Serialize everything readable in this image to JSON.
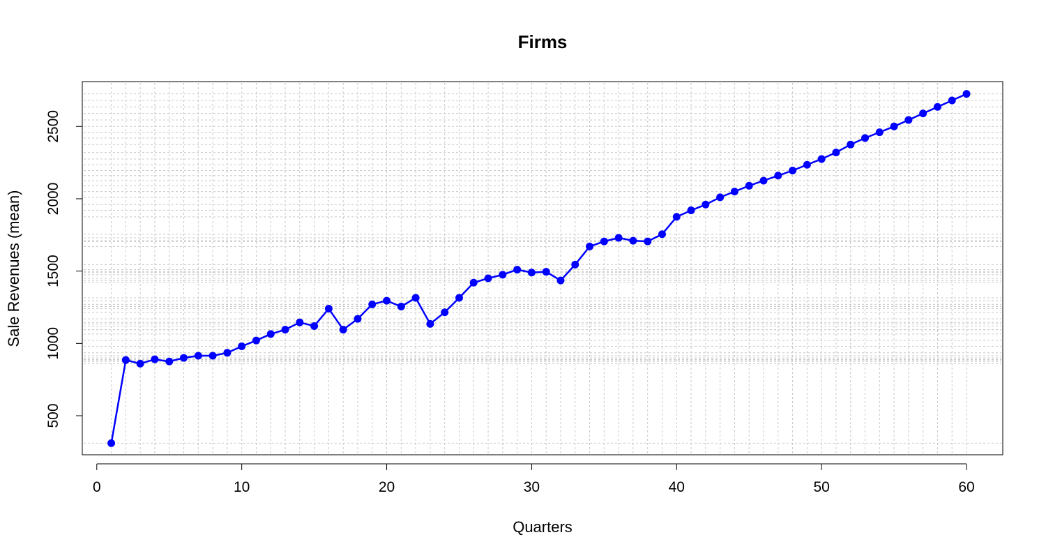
{
  "chart_data": {
    "type": "line",
    "title": "Firms",
    "xlabel": "Quarters",
    "ylabel": "Sale Revenues (mean)",
    "xlim": [
      -1,
      62.5
    ],
    "ylim": [
      230,
      2810
    ],
    "x_ticks": [
      0,
      10,
      20,
      30,
      40,
      50,
      60
    ],
    "y_ticks": [
      500,
      1000,
      1500,
      2000,
      2500
    ],
    "grid": true,
    "colors": {
      "series": "#0000ff",
      "grid": "#c8c8c8",
      "axis": "#000000"
    },
    "x": [
      1,
      2,
      3,
      4,
      5,
      6,
      7,
      8,
      9,
      10,
      11,
      12,
      13,
      14,
      15,
      16,
      17,
      18,
      19,
      20,
      21,
      22,
      23,
      24,
      25,
      26,
      27,
      28,
      29,
      30,
      31,
      32,
      33,
      34,
      35,
      36,
      37,
      38,
      39,
      40,
      41,
      42,
      43,
      44,
      45,
      46,
      47,
      48,
      49,
      50,
      51,
      52,
      53,
      54,
      55,
      56,
      57,
      58,
      59,
      60
    ],
    "series": [
      {
        "values": [
          310,
          885,
          860,
          890,
          875,
          900,
          915,
          915,
          935,
          980,
          1020,
          1065,
          1095,
          1145,
          1120,
          1240,
          1095,
          1170,
          1270,
          1295,
          1255,
          1315,
          1135,
          1215,
          1315,
          1420,
          1450,
          1475,
          1510,
          1490,
          1495,
          1435,
          1545,
          1670,
          1705,
          1730,
          1710,
          1705,
          1755,
          1875,
          1920,
          1960,
          2010,
          2050,
          2090,
          2125,
          2160,
          2195,
          2235,
          2275,
          2320,
          2375,
          2420,
          2460,
          2500,
          2545,
          2590,
          2635,
          2680,
          2725
        ]
      }
    ]
  }
}
